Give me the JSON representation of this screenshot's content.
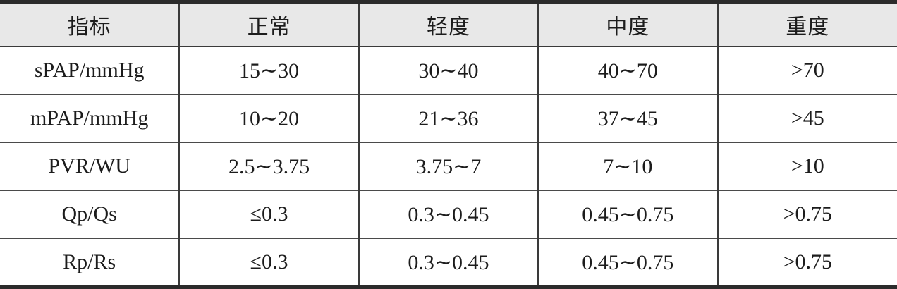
{
  "table": {
    "columns": [
      "指标",
      "正常",
      "轻度",
      "中度",
      "重度"
    ],
    "rows": [
      {
        "label": "sPAP/mmHg",
        "values": [
          "15∼30",
          "30∼40",
          "40∼70",
          ">70"
        ]
      },
      {
        "label": "mPAP/mmHg",
        "values": [
          "10∼20",
          "21∼36",
          "37∼45",
          ">45"
        ]
      },
      {
        "label": "PVR/WU",
        "values": [
          "2.5∼3.75",
          "3.75∼7",
          "7∼10",
          ">10"
        ]
      },
      {
        "label": "Qp/Qs",
        "values": [
          "≤0.3",
          "0.3∼0.45",
          "0.45∼0.75",
          ">0.75"
        ]
      },
      {
        "label": "Rp/Rs",
        "values": [
          "≤0.3",
          "0.3∼0.45",
          "0.45∼0.75",
          ">0.75"
        ]
      }
    ]
  }
}
